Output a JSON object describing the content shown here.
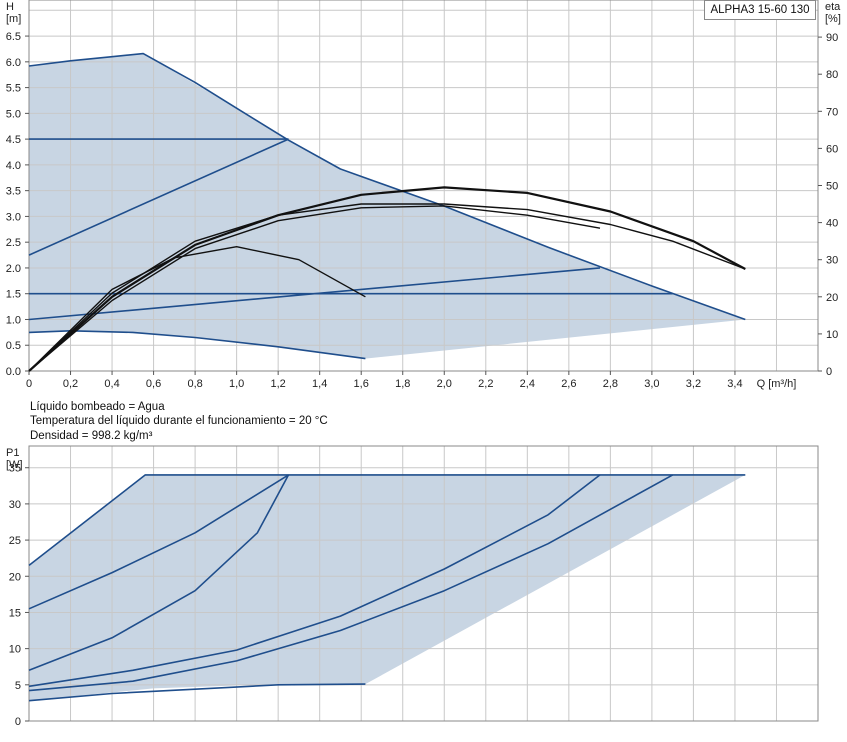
{
  "model": "ALPHA3 15-60 130",
  "info_lines": [
    "Líquido bombeado = Agua",
    "Temperatura del líquido durante el funcionamiento = 20 °C",
    "Densidad = 998.2 kg/m³"
  ],
  "colors": {
    "curve": "#1f4e8c",
    "eta": "#111111",
    "area": "#c8d5e3",
    "grid": "#c8c8c8"
  },
  "chart_data": [
    {
      "type": "line",
      "title": "",
      "xlabel": "Q [m³/h]",
      "ylabel": "H\n[m]",
      "y2label": "eta\n[%]",
      "xlim": [
        0,
        3.8
      ],
      "ylim": [
        0,
        7.2
      ],
      "y2lim": [
        0,
        100
      ],
      "x_ticks": [
        "0",
        "0,2",
        "0,4",
        "0,6",
        "0,8",
        "1,0",
        "1,2",
        "1,4",
        "1,6",
        "1,8",
        "2,0",
        "2,2",
        "2,4",
        "2,6",
        "2,8",
        "3,0",
        "3,2",
        "3,4"
      ],
      "y_ticks": [
        "0.0",
        "0.5",
        "1.0",
        "1.5",
        "2.0",
        "2.5",
        "3.0",
        "3.5",
        "4.0",
        "4.5",
        "5.0",
        "5.5",
        "6.0",
        "6.5"
      ],
      "y2_ticks": [
        "0",
        "10",
        "20",
        "30",
        "40",
        "50",
        "60",
        "70",
        "80",
        "90"
      ],
      "grid": true,
      "operating_area": [
        [
          0,
          5.92
        ],
        [
          0.2,
          6.02
        ],
        [
          0.4,
          6.1
        ],
        [
          0.55,
          6.16
        ],
        [
          1.0,
          5.1
        ],
        [
          1.5,
          3.9
        ],
        [
          2.0,
          3.2
        ],
        [
          2.5,
          2.4
        ],
        [
          3.0,
          1.65
        ],
        [
          3.45,
          1.0
        ],
        [
          1.62,
          0.24
        ],
        [
          1.2,
          0.47
        ],
        [
          0.8,
          0.65
        ],
        [
          0.5,
          0.75
        ],
        [
          0.2,
          0.78
        ],
        [
          0,
          0.75
        ]
      ],
      "series": [
        {
          "values": [
            [
              0,
              5.92
            ],
            [
              0.2,
              6.02
            ],
            [
              0.4,
              6.1
            ],
            [
              0.55,
              6.16
            ],
            [
              0.8,
              5.6
            ],
            [
              1.0,
              5.1
            ],
            [
              1.25,
              4.48
            ],
            [
              1.5,
              3.92
            ],
            [
              2.0,
              3.2
            ],
            [
              2.5,
              2.4
            ],
            [
              3.0,
              1.65
            ],
            [
              3.45,
              1.0
            ]
          ]
        },
        {
          "values": [
            [
              0,
              4.5
            ],
            [
              1.25,
              4.5
            ]
          ]
        },
        {
          "values": [
            [
              0,
              2.25
            ],
            [
              1.25,
              4.5
            ]
          ]
        },
        {
          "values": [
            [
              0,
              1.5
            ],
            [
              3.1,
              1.5
            ]
          ]
        },
        {
          "values": [
            [
              0,
              1.0
            ],
            [
              2.75,
              2.0
            ]
          ]
        },
        {
          "values": [
            [
              0,
              0.75
            ],
            [
              0.2,
              0.78
            ],
            [
              0.5,
              0.75
            ],
            [
              0.8,
              0.65
            ],
            [
              1.2,
              0.47
            ],
            [
              1.62,
              0.24
            ]
          ]
        }
      ],
      "eta_series": [
        {
          "values": [
            [
              0,
              0
            ],
            [
              0.4,
              20
            ],
            [
              0.8,
              34
            ],
            [
              1.2,
              42
            ],
            [
              1.6,
              47.5
            ],
            [
              2.0,
              49.5
            ],
            [
              2.4,
              48
            ],
            [
              2.8,
              43
            ],
            [
              3.2,
              35
            ],
            [
              3.45,
              27.5
            ]
          ]
        },
        {
          "values": [
            [
              0,
              0
            ],
            [
              0.4,
              21
            ],
            [
              0.8,
              35
            ],
            [
              1.2,
              42
            ],
            [
              1.6,
              45
            ],
            [
              2.0,
              45
            ],
            [
              2.4,
              43.5
            ],
            [
              2.8,
              39.5
            ],
            [
              3.1,
              35
            ],
            [
              3.45,
              27.5
            ]
          ]
        },
        {
          "values": [
            [
              0,
              0
            ],
            [
              0.4,
              19
            ],
            [
              0.8,
              33
            ],
            [
              1.2,
              40.5
            ],
            [
              1.6,
              44
            ],
            [
              2.0,
              44.5
            ],
            [
              2.4,
              42
            ],
            [
              2.75,
              38.5
            ]
          ]
        },
        {
          "values": [
            [
              0,
              0
            ],
            [
              0.4,
              22
            ],
            [
              0.7,
              30.5
            ],
            [
              1.0,
              33.5
            ],
            [
              1.3,
              30
            ],
            [
              1.62,
              20
            ]
          ]
        }
      ]
    },
    {
      "type": "line",
      "title": "",
      "xlabel": "",
      "ylabel": "P1\n[W]",
      "xlim": [
        0,
        3.8
      ],
      "ylim": [
        0,
        38
      ],
      "y_ticks": [
        "0",
        "5",
        "10",
        "15",
        "20",
        "25",
        "30",
        "35"
      ],
      "grid": true,
      "operating_area": [
        [
          0,
          21.5
        ],
        [
          0.56,
          34
        ],
        [
          3.45,
          34
        ],
        [
          1.62,
          5.1
        ],
        [
          1.2,
          5.1
        ],
        [
          0.6,
          4.5
        ],
        [
          0,
          2.8
        ]
      ],
      "series": [
        {
          "values": [
            [
              0,
              21.5
            ],
            [
              0.56,
              34
            ],
            [
              3.45,
              34
            ]
          ]
        },
        {
          "values": [
            [
              0,
              15.5
            ],
            [
              0.4,
              20.5
            ],
            [
              0.8,
              26
            ],
            [
              1.25,
              34
            ]
          ]
        },
        {
          "values": [
            [
              0,
              7
            ],
            [
              0.4,
              11.5
            ],
            [
              0.8,
              18
            ],
            [
              1.1,
              26
            ],
            [
              1.25,
              34
            ]
          ]
        },
        {
          "values": [
            [
              0,
              4.8
            ],
            [
              0.5,
              7
            ],
            [
              1.0,
              9.8
            ],
            [
              1.5,
              14.5
            ],
            [
              2.0,
              21
            ],
            [
              2.5,
              28.5
            ],
            [
              2.75,
              34
            ]
          ]
        },
        {
          "values": [
            [
              0,
              4.2
            ],
            [
              0.5,
              5.5
            ],
            [
              1.0,
              8.3
            ],
            [
              1.5,
              12.5
            ],
            [
              2.0,
              18
            ],
            [
              2.5,
              24.5
            ],
            [
              3.1,
              34
            ]
          ]
        },
        {
          "values": [
            [
              0,
              2.8
            ],
            [
              0.4,
              3.8
            ],
            [
              0.8,
              4.4
            ],
            [
              1.2,
              5.0
            ],
            [
              1.62,
              5.1
            ]
          ]
        }
      ]
    }
  ]
}
